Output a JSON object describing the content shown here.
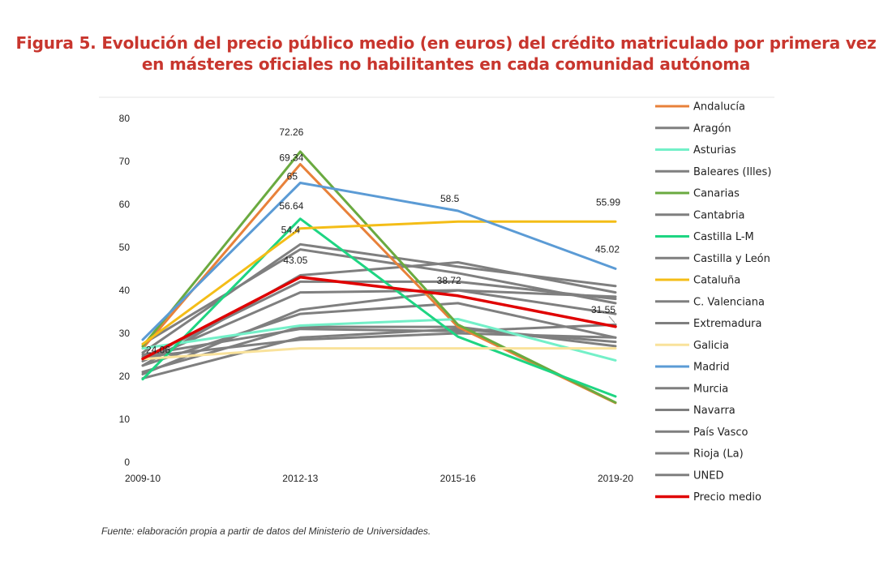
{
  "title_line1": "Figura 5. Evolución del precio público medio (en euros) del crédito matriculado por primera vez",
  "title_line2": "en másteres oficiales no habilitantes en cada comunidad autónoma",
  "source": "Fuente: elaboración propia a partir de datos del Ministerio de Universidades.",
  "chart_data": {
    "type": "line",
    "x": [
      "2009-10",
      "2012-13",
      "2015-16",
      "2019-20"
    ],
    "ylim": [
      0,
      80
    ],
    "yticks": [
      0,
      10,
      20,
      30,
      40,
      50,
      60,
      70,
      80
    ],
    "grid": false,
    "legend_position": "right",
    "series": [
      {
        "name": "Andalucía",
        "color": "#e8813a",
        "values": [
          26.5,
          69.34,
          31.5,
          13.8
        ]
      },
      {
        "name": "Aragón",
        "color": "#7f7f7f",
        "values": [
          22.5,
          43.5,
          46.5,
          39.5
        ]
      },
      {
        "name": "Asturias",
        "color": "#73f0c8",
        "values": [
          26.5,
          31.8,
          33.3,
          23.7
        ]
      },
      {
        "name": "Baleares (Illes)",
        "color": "#7f7f7f",
        "values": [
          20.5,
          35.5,
          40.0,
          34.5
        ]
      },
      {
        "name": "Canarias",
        "color": "#6aaa40",
        "values": [
          27.0,
          72.26,
          32.0,
          13.9
        ]
      },
      {
        "name": "Cantabria",
        "color": "#7f7f7f",
        "values": [
          23.5,
          39.5,
          40.0,
          38.5
        ]
      },
      {
        "name": "Castilla L-M",
        "color": "#1ed582",
        "values": [
          19.3,
          56.64,
          29.2,
          15.3
        ]
      },
      {
        "name": "Castilla y León",
        "color": "#7f7f7f",
        "values": [
          25.5,
          50.7,
          45.5,
          41.0
        ]
      },
      {
        "name": "Cataluña",
        "color": "#f4bd17",
        "values": [
          27.5,
          54.4,
          55.99,
          55.99
        ]
      },
      {
        "name": "C. Valenciana",
        "color": "#7f7f7f",
        "values": [
          22.5,
          34.5,
          37.0,
          29.0
        ]
      },
      {
        "name": "Extremadura",
        "color": "#7f7f7f",
        "values": [
          21.0,
          31.5,
          31.5,
          27.0
        ]
      },
      {
        "name": "Galicia",
        "color": "#f9e29b",
        "values": [
          24.0,
          26.5,
          26.5,
          26.5
        ]
      },
      {
        "name": "Madrid",
        "color": "#5b9bd5",
        "values": [
          28.5,
          65.0,
          58.5,
          45.02
        ]
      },
      {
        "name": "Murcia",
        "color": "#7f7f7f",
        "values": [
          27.5,
          49.5,
          44.0,
          37.0
        ]
      },
      {
        "name": "Navarra",
        "color": "#7f7f7f",
        "values": [
          24.0,
          42.0,
          42.0,
          38.0
        ]
      },
      {
        "name": "País Vasco",
        "color": "#7f7f7f",
        "values": [
          19.5,
          29.0,
          31.0,
          28.0
        ]
      },
      {
        "name": "Rioja (La)",
        "color": "#7f7f7f",
        "values": [
          24.5,
          28.5,
          30.0,
          29.0
        ]
      },
      {
        "name": "UNED",
        "color": "#7f7f7f",
        "values": [
          25.0,
          31.0,
          30.5,
          32.0
        ]
      },
      {
        "name": "Precio medio",
        "color": "#e00000",
        "values": [
          24.06,
          43.05,
          38.72,
          31.55
        ]
      }
    ],
    "annotations": [
      {
        "text": "24.06",
        "x": "2009-10",
        "y": 24.06
      },
      {
        "text": "72.26",
        "x": "2012-13",
        "y": 72.26
      },
      {
        "text": "69.34",
        "x": "2012-13",
        "y": 69.34
      },
      {
        "text": "65",
        "x": "2012-13",
        "y": 65
      },
      {
        "text": "56.64",
        "x": "2012-13",
        "y": 56.64
      },
      {
        "text": "54.4",
        "x": "2012-13",
        "y": 54.4
      },
      {
        "text": "43.05",
        "x": "2012-13",
        "y": 43.05
      },
      {
        "text": "58.5",
        "x": "2015-16",
        "y": 58.5
      },
      {
        "text": "38.72",
        "x": "2015-16",
        "y": 38.72
      },
      {
        "text": "55.99",
        "x": "2019-20",
        "y": 55.99
      },
      {
        "text": "45.02",
        "x": "2019-20",
        "y": 45.02
      },
      {
        "text": "31.55",
        "x": "2019-20",
        "y": 31.55
      }
    ]
  }
}
